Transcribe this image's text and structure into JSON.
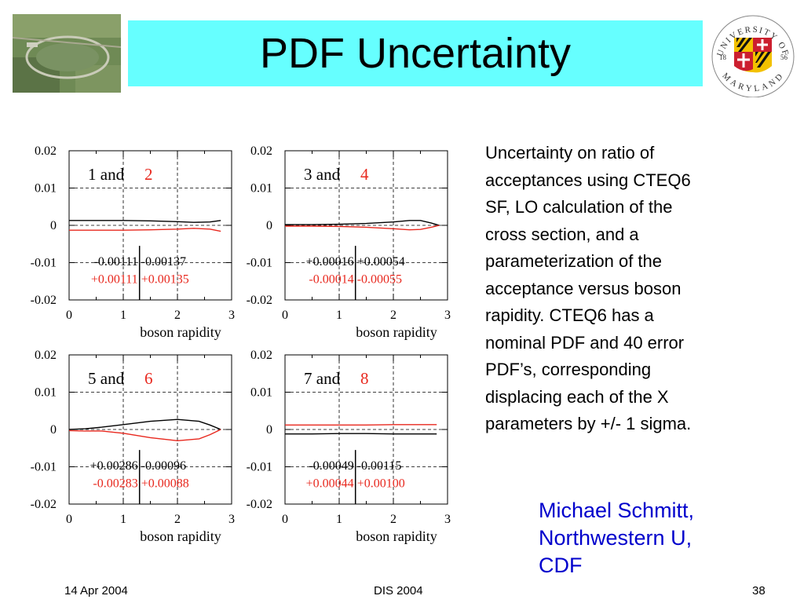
{
  "slide": {
    "title": "PDF Uncertainty",
    "description_lines": [
      "Uncertainty on ratio of",
      "acceptances  using CTEQ6",
      "SF, LO calculation of the",
      "cross section, and a",
      "parameterization of the",
      "acceptance versus boson",
      "rapidity.  CTEQ6 has a",
      "nominal PDF and 40 error",
      "PDF’s, corresponding",
      "displacing each of the X",
      "parameters by +/- 1 sigma."
    ],
    "author_lines": [
      "Michael Schmitt,",
      "Northwestern U,",
      "CDF"
    ],
    "footer": {
      "date": "14 Apr 2004",
      "conference": "DIS 2004",
      "page": "38"
    },
    "seal": {
      "top_text": "UNIVERSITY OF",
      "bottom_text": "MARYLAND",
      "year_left": "18",
      "year_right": "56"
    },
    "colors": {
      "title_bg": "#66ffff",
      "author": "#0000cc",
      "red_series": "#e8281e",
      "black_series": "#000000"
    }
  },
  "chart_data": [
    {
      "type": "line",
      "panel_label": "1 and",
      "panel_label_red": "2",
      "xlabel": "boson rapidity",
      "ylabel": "",
      "xlim": [
        0,
        3
      ],
      "ylim": [
        -0.02,
        0.02
      ],
      "xticks": [
        "0",
        "1",
        "2",
        "3"
      ],
      "yticks": [
        "0.02",
        "0.01",
        "0",
        "-0.01",
        "-0.02"
      ],
      "grid": true,
      "cut_x": 1.3,
      "annotations": [
        {
          "text": "-0.00111",
          "color": "black",
          "side": "left",
          "row": 1
        },
        {
          "text": "-0.00137",
          "color": "black",
          "side": "right",
          "row": 1
        },
        {
          "text": "+0.00111",
          "color": "red",
          "side": "left",
          "row": 2
        },
        {
          "text": "+0.00135",
          "color": "red",
          "side": "right",
          "row": 2
        }
      ],
      "series": [
        {
          "color": "black",
          "x": [
            0,
            0.5,
            1,
            1.5,
            2,
            2.3,
            2.6,
            2.8
          ],
          "y": [
            0.0013,
            0.0013,
            0.0013,
            0.0012,
            0.001,
            0.0008,
            0.0009,
            0.0013
          ]
        },
        {
          "color": "red",
          "x": [
            0,
            0.5,
            1,
            1.5,
            2,
            2.3,
            2.6,
            2.8
          ],
          "y": [
            -0.0013,
            -0.0013,
            -0.0013,
            -0.0012,
            -0.001,
            -0.0008,
            -0.001,
            -0.0016
          ]
        }
      ]
    },
    {
      "type": "line",
      "panel_label": "3 and",
      "panel_label_red": "4",
      "xlabel": "boson rapidity",
      "ylabel": "",
      "xlim": [
        0,
        3
      ],
      "ylim": [
        -0.02,
        0.02
      ],
      "xticks": [
        "0",
        "1",
        "2",
        "3"
      ],
      "yticks": [
        "0.02",
        "0.01",
        "0",
        "-0.01",
        "-0.02"
      ],
      "grid": true,
      "cut_x": 1.3,
      "annotations": [
        {
          "text": "+0.00016",
          "color": "black",
          "side": "left",
          "row": 1
        },
        {
          "text": "+0.00054",
          "color": "black",
          "side": "right",
          "row": 1
        },
        {
          "text": "-0.00014",
          "color": "red",
          "side": "left",
          "row": 2
        },
        {
          "text": "-0.00055",
          "color": "red",
          "side": "right",
          "row": 2
        }
      ],
      "series": [
        {
          "color": "black",
          "x": [
            0,
            0.5,
            1,
            1.5,
            2,
            2.3,
            2.5,
            2.7,
            2.85
          ],
          "y": [
            0.0002,
            0.0002,
            0.0003,
            0.0005,
            0.0009,
            0.0013,
            0.0013,
            0.0006,
            0.0
          ]
        },
        {
          "color": "red",
          "x": [
            0,
            0.5,
            1,
            1.5,
            2,
            2.3,
            2.5,
            2.7,
            2.85
          ],
          "y": [
            -0.0002,
            -0.0002,
            -0.0003,
            -0.0005,
            -0.0009,
            -0.0012,
            -0.0011,
            -0.0005,
            0.0
          ]
        }
      ]
    },
    {
      "type": "line",
      "panel_label": "5 and",
      "panel_label_red": "6",
      "xlabel": "boson rapidity",
      "ylabel": "",
      "xlim": [
        0,
        3
      ],
      "ylim": [
        -0.02,
        0.02
      ],
      "xticks": [
        "0",
        "1",
        "2",
        "3"
      ],
      "yticks": [
        "0.02",
        "0.01",
        "0",
        "-0.01",
        "-0.02"
      ],
      "grid": true,
      "cut_x": 1.3,
      "annotations": [
        {
          "text": "+0.00286",
          "color": "black",
          "side": "left",
          "row": 1
        },
        {
          "text": "-0.00096",
          "color": "black",
          "side": "right",
          "row": 1
        },
        {
          "text": "-0.00283",
          "color": "red",
          "side": "left",
          "row": 2
        },
        {
          "text": "+0.00088",
          "color": "red",
          "side": "right",
          "row": 2
        }
      ],
      "series": [
        {
          "color": "black",
          "x": [
            0,
            0.3,
            0.6,
            1,
            1.5,
            2,
            2.4,
            2.6,
            2.8
          ],
          "y": [
            0.0,
            0.0002,
            0.0006,
            0.0013,
            0.0022,
            0.0027,
            0.0022,
            0.0012,
            0.0
          ]
        },
        {
          "color": "red",
          "x": [
            0,
            0.3,
            0.6,
            1,
            1.5,
            2,
            2.4,
            2.6,
            2.8
          ],
          "y": [
            -0.0003,
            -0.0004,
            -0.0004,
            -0.001,
            -0.0022,
            -0.003,
            -0.0025,
            -0.0014,
            0.0
          ]
        }
      ]
    },
    {
      "type": "line",
      "panel_label": "7 and",
      "panel_label_red": "8",
      "xlabel": "boson rapidity",
      "ylabel": "",
      "xlim": [
        0,
        3
      ],
      "ylim": [
        -0.02,
        0.02
      ],
      "xticks": [
        "0",
        "1",
        "2",
        "3"
      ],
      "yticks": [
        "0.02",
        "0.01",
        "0",
        "-0.01",
        "-0.02"
      ],
      "grid": true,
      "cut_x": 1.3,
      "annotations": [
        {
          "text": "-0.00049",
          "color": "black",
          "side": "left",
          "row": 1
        },
        {
          "text": "-0.00115",
          "color": "black",
          "side": "right",
          "row": 1
        },
        {
          "text": "+0.00044",
          "color": "red",
          "side": "left",
          "row": 2
        },
        {
          "text": "+0.00100",
          "color": "red",
          "side": "right",
          "row": 2
        }
      ],
      "series": [
        {
          "color": "black",
          "x": [
            0,
            0.5,
            1,
            1.5,
            2,
            2.5,
            2.8
          ],
          "y": [
            -0.0012,
            -0.0012,
            -0.0011,
            -0.0011,
            -0.0012,
            -0.0012,
            -0.0012
          ]
        },
        {
          "color": "red",
          "x": [
            0,
            0.5,
            1,
            1.5,
            2,
            2.5,
            2.8
          ],
          "y": [
            0.0012,
            0.0012,
            0.0012,
            0.0012,
            0.0013,
            0.0013,
            0.0013
          ]
        }
      ]
    }
  ]
}
